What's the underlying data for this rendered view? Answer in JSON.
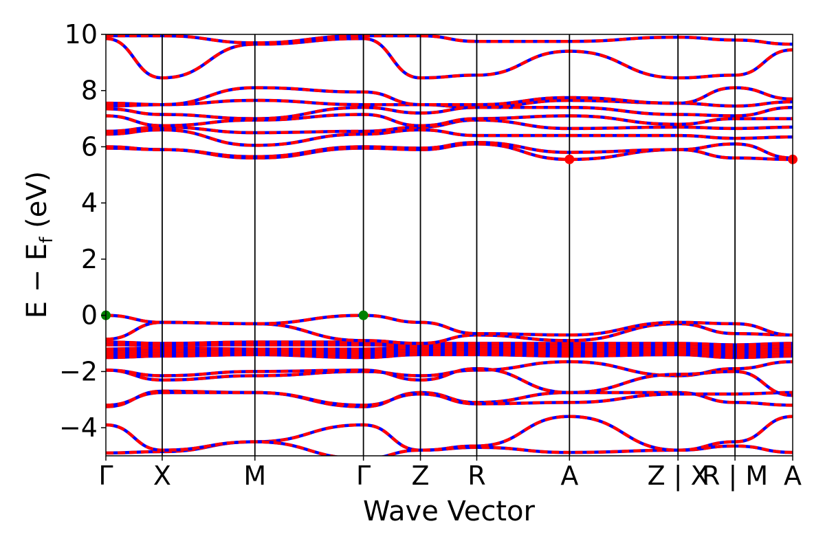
{
  "chart_data": {
    "type": "line",
    "title": "",
    "xlabel": "Wave Vector",
    "ylabel": "E − E",
    "ylabel_subscript": "f",
    "ylabel_unit": " (eV)",
    "ylim": [
      -5,
      10
    ],
    "yticks": [
      -4,
      -2,
      0,
      2,
      4,
      6,
      8,
      10
    ],
    "ytick_labels": [
      "−4",
      "−2",
      "0",
      "2",
      "4",
      "6",
      "8",
      "10"
    ],
    "xlim": [
      0,
      1
    ],
    "kpath": [
      {
        "label": "Γ",
        "x": 0.0
      },
      {
        "label": "X",
        "x": 0.082
      },
      {
        "label": "M",
        "x": 0.217
      },
      {
        "label": "Γ",
        "x": 0.375
      },
      {
        "label": "Z",
        "x": 0.458
      },
      {
        "label": "R",
        "x": 0.54
      },
      {
        "label": "A",
        "x": 0.675
      },
      {
        "label": "Z | X",
        "x": 0.833
      },
      {
        "label": "R | M",
        "x": 0.916
      },
      {
        "label": "A",
        "x": 1.0
      }
    ],
    "grid": false,
    "line_colors": {
      "spin_up": "#ff0000",
      "spin_down": "#0000ff"
    },
    "cbm_color": "#ff0000",
    "vbm_color": "#008000",
    "band_extrema": [
      {
        "type": "VBM",
        "x": 0.0,
        "y": 0.0
      },
      {
        "type": "VBM",
        "x": 0.375,
        "y": 0.0
      },
      {
        "type": "CBM",
        "x": 0.675,
        "y": 5.55
      },
      {
        "type": "CBM",
        "x": 1.0,
        "y": 5.55
      }
    ],
    "bands": [
      [
        -4.9,
        -4.85,
        -4.5,
        -3.9,
        -4.8,
        -4.7,
        -4.88,
        -4.8,
        -4.65,
        -4.88
      ],
      [
        -3.9,
        -4.8,
        -4.5,
        -5.1,
        -4.8,
        -4.65,
        -3.6,
        -4.8,
        -4.5,
        -3.6
      ],
      [
        -3.25,
        -2.7,
        -2.75,
        -3.25,
        -2.75,
        -3.1,
        -2.75,
        -2.75,
        -3.1,
        -3.2
      ],
      [
        -3.2,
        -2.75,
        -2.75,
        -3.2,
        -2.8,
        -3.15,
        -3.1,
        -2.8,
        -2.8,
        -2.75
      ],
      [
        -1.95,
        -2.3,
        -2.15,
        -2.0,
        -2.15,
        -1.95,
        -1.65,
        -2.15,
        -1.9,
        -1.65
      ],
      [
        -1.95,
        -2.15,
        -2.0,
        -1.95,
        -2.3,
        -1.9,
        -2.75,
        -2.1,
        -2.0,
        -2.85
      ],
      [
        -1.5,
        -1.45,
        -1.4,
        -1.5,
        -1.4,
        -1.4,
        -1.45,
        -1.4,
        -1.5,
        -1.45
      ],
      [
        -1.4,
        -1.35,
        -1.35,
        -1.4,
        -1.35,
        -1.35,
        -1.35,
        -1.35,
        -1.45,
        -1.4
      ],
      [
        -1.3,
        -1.25,
        -1.3,
        -1.3,
        -1.25,
        -1.25,
        -1.25,
        -1.3,
        -1.35,
        -1.3
      ],
      [
        -1.2,
        -1.15,
        -1.2,
        -1.2,
        -1.15,
        -1.2,
        -1.2,
        -1.2,
        -1.25,
        -1.2
      ],
      [
        -1.05,
        -1.05,
        -1.05,
        -1.05,
        -1.1,
        -1.1,
        -1.1,
        -1.1,
        -1.15,
        -1.1
      ],
      [
        -0.95,
        -1.0,
        -0.95,
        -0.95,
        -1.0,
        -1.0,
        -1.0,
        -1.0,
        -1.05,
        -1.0
      ],
      [
        -0.85,
        -0.25,
        -0.3,
        -0.9,
        -1.0,
        -0.7,
        -0.9,
        -0.3,
        -0.65,
        -0.7
      ],
      [
        0.0,
        -0.25,
        -0.3,
        0.0,
        -0.25,
        -0.65,
        -0.7,
        -0.25,
        -0.3,
        -0.7
      ],
      [
        5.95,
        5.9,
        5.6,
        5.95,
        5.9,
        6.1,
        5.55,
        5.9,
        5.6,
        5.55
      ],
      [
        6.0,
        5.9,
        5.65,
        6.0,
        5.95,
        6.15,
        5.8,
        5.9,
        6.1,
        5.6
      ],
      [
        6.45,
        6.6,
        6.05,
        6.45,
        6.6,
        6.4,
        6.4,
        6.4,
        6.3,
        6.35
      ],
      [
        6.55,
        6.7,
        6.5,
        6.55,
        6.7,
        6.95,
        6.65,
        6.7,
        6.65,
        6.7
      ],
      [
        7.1,
        6.75,
        6.95,
        7.15,
        6.75,
        7.0,
        7.1,
        6.8,
        7.0,
        7.0
      ],
      [
        7.35,
        7.15,
        7.0,
        7.4,
        7.2,
        7.4,
        7.4,
        7.15,
        7.1,
        7.4
      ],
      [
        7.45,
        7.5,
        7.65,
        7.5,
        7.5,
        7.4,
        7.65,
        7.55,
        7.45,
        7.6
      ],
      [
        7.55,
        7.5,
        8.1,
        7.95,
        7.5,
        7.5,
        7.75,
        7.55,
        8.1,
        7.7
      ],
      [
        9.85,
        8.45,
        9.65,
        9.85,
        8.45,
        8.55,
        9.4,
        8.45,
        8.55,
        9.45
      ],
      [
        9.95,
        9.95,
        9.7,
        9.95,
        9.95,
        9.75,
        9.75,
        9.9,
        9.8,
        9.65
      ]
    ]
  }
}
